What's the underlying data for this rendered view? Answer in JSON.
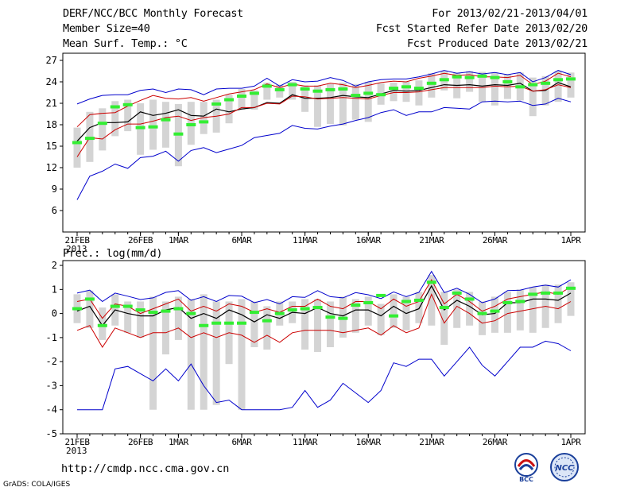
{
  "header": {
    "title": "DERF/NCC/BCC Monthly Forecast",
    "member_size": "Member Size=40",
    "variable": "Mean Surf. Temp.: °C",
    "period": "For 2013/02/21-2013/04/01",
    "started": "Fcst Started Refer Date 2013/02/20",
    "produced": "Fcst Produced Date 2013/02/21"
  },
  "footer": {
    "url": "http://cmdp.ncc.cma.gov.cn",
    "grads": "GrADS: COLA/IGES",
    "logo_bcc_text": "BCC",
    "logo_ncc_text": "NCC"
  },
  "colors": {
    "blue": "#0000cc",
    "red": "#cc0000",
    "black": "#000000",
    "green": "#33ee33",
    "gray": "#d4d4d4"
  },
  "chart_data": [
    {
      "type": "line",
      "title": "Mean Surf. Temp.: °C",
      "xlabel_year": "2013",
      "x_tick_labels": [
        "21FEB",
        "26FEB",
        "1MAR",
        "6MAR",
        "11MAR",
        "16MAR",
        "21MAR",
        "26MAR",
        "1APR"
      ],
      "x_tick_days": [
        0,
        5,
        8,
        13,
        18,
        23,
        28,
        33,
        39
      ],
      "y_ticks": [
        6,
        9,
        12,
        15,
        18,
        21,
        24,
        27
      ],
      "ylim": [
        3,
        28
      ],
      "x": [
        0,
        1,
        2,
        3,
        4,
        5,
        6,
        7,
        8,
        9,
        10,
        11,
        12,
        13,
        14,
        15,
        16,
        17,
        18,
        19,
        20,
        21,
        22,
        23,
        24,
        25,
        26,
        27,
        28,
        29,
        30,
        31,
        32,
        33,
        34,
        35,
        36,
        37,
        38,
        39
      ],
      "series": [
        {
          "name": "max",
          "color": "blue",
          "values": [
            20.9,
            21.6,
            22.1,
            22.2,
            22.2,
            22.8,
            23.0,
            22.5,
            23.0,
            22.9,
            22.2,
            23.0,
            23.1,
            23.1,
            23.4,
            24.5,
            23.4,
            24.3,
            24.0,
            24.1,
            24.6,
            24.2,
            23.4,
            24.0,
            24.3,
            24.4,
            24.4,
            24.7,
            25.1,
            25.6,
            25.2,
            25.4,
            25.1,
            25.3,
            25.0,
            25.3,
            24.0,
            24.6,
            25.6,
            25.0
          ]
        },
        {
          "name": "upper",
          "color": "red",
          "values": [
            17.7,
            19.4,
            19.6,
            19.7,
            20.6,
            21.4,
            22.1,
            21.7,
            21.6,
            21.8,
            21.3,
            21.8,
            22.3,
            22.6,
            22.9,
            23.7,
            23.2,
            23.7,
            23.4,
            23.4,
            23.8,
            23.6,
            23.2,
            23.5,
            23.9,
            24.1,
            24.0,
            24.5,
            24.8,
            25.2,
            24.9,
            25.0,
            24.7,
            24.7,
            24.6,
            24.9,
            23.6,
            24.1,
            25.2,
            24.7
          ]
        },
        {
          "name": "mean",
          "color": "black",
          "values": [
            15.7,
            17.6,
            18.3,
            18.3,
            18.4,
            19.8,
            19.3,
            19.6,
            20.1,
            19.3,
            19.2,
            20.2,
            19.8,
            20.2,
            20.4,
            21.1,
            21.0,
            22.2,
            21.7,
            21.7,
            21.8,
            22.1,
            21.9,
            21.8,
            22.3,
            22.8,
            22.7,
            22.8,
            23.2,
            23.6,
            23.5,
            23.6,
            23.4,
            23.6,
            23.5,
            23.8,
            22.7,
            22.8,
            23.9,
            23.3
          ]
        },
        {
          "name": "lower",
          "color": "red",
          "values": [
            13.5,
            16.2,
            16.0,
            17.3,
            18.1,
            18.1,
            18.5,
            19.0,
            19.2,
            18.6,
            19.0,
            19.2,
            19.5,
            20.4,
            20.4,
            21.0,
            20.9,
            22.0,
            21.9,
            21.6,
            21.7,
            21.8,
            21.7,
            21.6,
            22.1,
            22.5,
            22.5,
            22.6,
            22.9,
            23.2,
            23.2,
            23.2,
            23.2,
            23.4,
            23.3,
            23.4,
            22.7,
            22.9,
            23.6,
            23.2
          ]
        },
        {
          "name": "min",
          "color": "blue",
          "values": [
            7.5,
            10.8,
            11.5,
            12.5,
            11.9,
            13.4,
            13.6,
            14.3,
            12.9,
            14.4,
            14.8,
            14.1,
            14.6,
            15.1,
            16.2,
            16.5,
            16.8,
            17.9,
            17.5,
            17.4,
            17.8,
            18.1,
            18.6,
            19.0,
            19.7,
            20.1,
            19.3,
            19.8,
            19.8,
            20.4,
            20.3,
            20.2,
            21.2,
            21.3,
            21.2,
            21.3,
            20.7,
            20.9,
            21.7,
            21.2
          ]
        },
        {
          "name": "observed",
          "color": "green",
          "values": [
            15.5,
            16.1,
            18.2,
            20.5,
            20.8,
            17.6,
            17.7,
            18.7,
            16.7,
            18.0,
            18.4,
            20.9,
            21.5,
            22.0,
            22.4,
            23.4,
            22.9,
            23.6,
            23.0,
            22.7,
            22.9,
            23.0,
            22.1,
            22.4,
            22.2,
            23.1,
            23.3,
            23.1,
            23.8,
            24.3,
            24.7,
            24.6,
            24.8,
            24.6,
            24.0,
            23.3,
            23.6,
            23.8,
            24.3,
            24.4
          ]
        }
      ],
      "range_bars": [
        [
          12.0,
          17.6
        ],
        [
          12.8,
          19.8
        ],
        [
          14.4,
          20.3
        ],
        [
          16.4,
          21.3
        ],
        [
          17.1,
          21.5
        ],
        [
          13.8,
          21.0
        ],
        [
          14.5,
          21.5
        ],
        [
          14.8,
          21.2
        ],
        [
          12.2,
          20.9
        ],
        [
          15.2,
          21.2
        ],
        [
          16.7,
          21.2
        ],
        [
          16.9,
          21.5
        ],
        [
          18.2,
          22.2
        ],
        [
          20.1,
          23.0
        ],
        [
          20.1,
          22.8
        ],
        [
          21.5,
          23.9
        ],
        [
          21.8,
          23.6
        ],
        [
          21.5,
          24.0
        ],
        [
          19.8,
          23.5
        ],
        [
          17.7,
          23.5
        ],
        [
          18.1,
          23.7
        ],
        [
          17.9,
          23.9
        ],
        [
          18.7,
          23.7
        ],
        [
          18.4,
          24.0
        ],
        [
          20.8,
          23.8
        ],
        [
          21.3,
          23.9
        ],
        [
          21.2,
          24.0
        ],
        [
          20.7,
          24.2
        ],
        [
          21.8,
          25.2
        ],
        [
          22.8,
          25.5
        ],
        [
          21.7,
          25.3
        ],
        [
          22.6,
          25.5
        ],
        [
          21.2,
          25.4
        ],
        [
          20.7,
          25.3
        ],
        [
          21.6,
          25.0
        ],
        [
          21.4,
          25.3
        ],
        [
          19.2,
          24.6
        ],
        [
          20.7,
          24.8
        ],
        [
          21.2,
          25.5
        ],
        [
          21.8,
          25.3
        ]
      ]
    },
    {
      "type": "line",
      "title": "Prec.: log(mm/d)",
      "xlabel_year": "2013",
      "x_tick_labels": [
        "21FEB",
        "26FEB",
        "1MAR",
        "6MAR",
        "11MAR",
        "16MAR",
        "21MAR",
        "26MAR",
        "1APR"
      ],
      "x_tick_days": [
        0,
        5,
        8,
        13,
        18,
        23,
        28,
        33,
        39
      ],
      "y_ticks": [
        -5,
        -4,
        -3,
        -2,
        -1,
        0,
        1,
        2
      ],
      "ylim": [
        -5,
        2.2
      ],
      "x": [
        0,
        1,
        2,
        3,
        4,
        5,
        6,
        7,
        8,
        9,
        10,
        11,
        12,
        13,
        14,
        15,
        16,
        17,
        18,
        19,
        20,
        21,
        22,
        23,
        24,
        25,
        26,
        27,
        28,
        29,
        30,
        31,
        32,
        33,
        34,
        35,
        36,
        37,
        38,
        39
      ],
      "series": [
        {
          "name": "max",
          "color": "blue",
          "values": [
            0.85,
            0.97,
            0.5,
            0.85,
            0.72,
            0.58,
            0.65,
            0.88,
            0.95,
            0.55,
            0.7,
            0.5,
            0.75,
            0.72,
            0.45,
            0.58,
            0.4,
            0.7,
            0.67,
            0.95,
            0.7,
            0.65,
            0.87,
            0.78,
            0.62,
            0.9,
            0.7,
            0.88,
            1.75,
            0.87,
            1.05,
            0.8,
            0.45,
            0.6,
            0.95,
            0.97,
            1.1,
            1.18,
            1.1,
            1.4
          ]
        },
        {
          "name": "upper",
          "color": "red",
          "values": [
            0.5,
            0.6,
            -0.2,
            0.4,
            0.3,
            0.0,
            0.2,
            0.4,
            0.6,
            0.1,
            0.3,
            0.1,
            0.4,
            0.3,
            0.05,
            0.2,
            0.05,
            0.3,
            0.3,
            0.6,
            0.3,
            0.2,
            0.5,
            0.5,
            0.2,
            0.6,
            0.3,
            0.5,
            1.4,
            0.4,
            0.8,
            0.5,
            0.1,
            0.3,
            0.6,
            0.7,
            0.8,
            0.9,
            0.8,
            1.1
          ]
        },
        {
          "name": "mean",
          "color": "black",
          "values": [
            0.1,
            0.3,
            -0.5,
            0.15,
            0.0,
            -0.1,
            -0.1,
            0.15,
            0.25,
            -0.2,
            0.0,
            -0.2,
            0.15,
            -0.05,
            -0.35,
            -0.05,
            -0.2,
            0.05,
            0.0,
            0.25,
            0.0,
            -0.1,
            0.15,
            0.15,
            -0.1,
            0.3,
            0.0,
            0.2,
            1.15,
            0.15,
            0.55,
            0.3,
            -0.05,
            0.0,
            0.45,
            0.45,
            0.6,
            0.6,
            0.55,
            0.85
          ]
        },
        {
          "name": "lower",
          "color": "red",
          "values": [
            -0.7,
            -0.5,
            -1.4,
            -0.6,
            -0.8,
            -1.0,
            -0.8,
            -0.8,
            -0.6,
            -1.0,
            -0.8,
            -1.0,
            -0.8,
            -0.9,
            -1.2,
            -0.9,
            -1.2,
            -0.8,
            -0.7,
            -0.7,
            -0.7,
            -0.8,
            -0.7,
            -0.6,
            -0.9,
            -0.5,
            -0.8,
            -0.6,
            0.8,
            -0.4,
            0.3,
            0.0,
            -0.4,
            -0.3,
            0.0,
            0.1,
            0.2,
            0.3,
            0.2,
            0.5
          ]
        },
        {
          "name": "min",
          "color": "blue",
          "values": [
            -4.0,
            -4.0,
            -4.0,
            -2.3,
            -2.2,
            -2.5,
            -2.8,
            -2.3,
            -2.8,
            -2.1,
            -3.0,
            -3.7,
            -3.6,
            -4.0,
            -4.0,
            -4.0,
            -4.0,
            -3.9,
            -3.2,
            -3.9,
            -3.6,
            -2.9,
            -3.3,
            -3.7,
            -3.2,
            -2.05,
            -2.2,
            -1.9,
            -1.9,
            -2.6,
            -2.0,
            -1.4,
            -2.15,
            -2.6,
            -2.0,
            -1.4,
            -1.4,
            -1.15,
            -1.25,
            -1.55
          ]
        },
        {
          "name": "observed",
          "color": "green",
          "values": [
            0.2,
            0.6,
            -0.5,
            0.3,
            0.3,
            0.15,
            0.05,
            0.1,
            0.2,
            0.0,
            -0.5,
            -0.4,
            -0.4,
            -0.4,
            0.05,
            -0.3,
            0.0,
            0.15,
            0.2,
            0.25,
            -0.15,
            -0.2,
            0.35,
            0.45,
            0.75,
            -0.1,
            0.5,
            0.55,
            1.3,
            0.25,
            0.85,
            0.6,
            0.0,
            0.1,
            0.45,
            0.5,
            0.8,
            0.85,
            0.85,
            1.05
          ]
        }
      ],
      "range_bars": [
        [
          -0.4,
          0.8
        ],
        [
          -0.6,
          0.95
        ],
        [
          -1.1,
          0.25
        ],
        [
          -0.5,
          0.8
        ],
        [
          -0.8,
          0.5
        ],
        [
          -1.0,
          0.5
        ],
        [
          -4.0,
          0.7
        ],
        [
          -1.7,
          0.5
        ],
        [
          -1.1,
          0.7
        ],
        [
          -4.0,
          0.6
        ],
        [
          -4.0,
          0.8
        ],
        [
          -3.8,
          0.5
        ],
        [
          -2.1,
          0.5
        ],
        [
          -4.0,
          0.6
        ],
        [
          -1.4,
          0.5
        ],
        [
          -1.5,
          0.3
        ],
        [
          -0.5,
          0.5
        ],
        [
          -0.4,
          0.5
        ],
        [
          -1.5,
          0.6
        ],
        [
          -1.6,
          0.6
        ],
        [
          -1.4,
          0.5
        ],
        [
          -1.0,
          0.7
        ],
        [
          -0.8,
          0.6
        ],
        [
          -0.5,
          0.7
        ],
        [
          -0.9,
          0.4
        ],
        [
          -0.6,
          0.8
        ],
        [
          -0.7,
          0.7
        ],
        [
          -0.4,
          0.9
        ],
        [
          -0.5,
          1.6
        ],
        [
          -1.3,
          0.9
        ],
        [
          -0.6,
          1.0
        ],
        [
          -0.5,
          0.9
        ],
        [
          -0.9,
          0.5
        ],
        [
          -0.8,
          0.7
        ],
        [
          -0.8,
          0.9
        ],
        [
          -0.7,
          1.0
        ],
        [
          -0.8,
          1.1
        ],
        [
          -0.6,
          1.2
        ],
        [
          -0.4,
          1.2
        ],
        [
          -0.1,
          1.3
        ]
      ]
    }
  ]
}
